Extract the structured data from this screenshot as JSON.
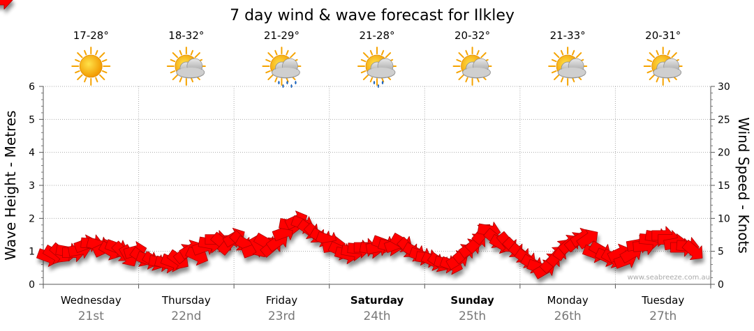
{
  "title": "7 day wind & wave forecast for Ilkley",
  "watermark": "www.seabreeze.com.au",
  "colors": {
    "arrow": "#ff0000",
    "arrow_stroke": "#b00000",
    "grid": "#aaaaaa",
    "sun": "#f5a300",
    "cloud": "#b5b5b5",
    "rain": "#1e6fd0"
  },
  "days": [
    {
      "name": "Wednesday",
      "num": "21st",
      "temp": "17-28°",
      "icon": "sun-icon",
      "bold": false
    },
    {
      "name": "Thursday",
      "num": "22nd",
      "temp": "18-32°",
      "icon": "sun-cloud-icon",
      "bold": false
    },
    {
      "name": "Friday",
      "num": "23rd",
      "temp": "21-29°",
      "icon": "sun-cloud-rain-icon",
      "bold": false
    },
    {
      "name": "Saturday",
      "num": "24th",
      "temp": "21-28°",
      "icon": "sun-cloud-showers-icon",
      "bold": true
    },
    {
      "name": "Sunday",
      "num": "25th",
      "temp": "20-32°",
      "icon": "sun-cloud-icon",
      "bold": true
    },
    {
      "name": "Monday",
      "num": "26th",
      "temp": "21-33°",
      "icon": "sun-cloud-icon",
      "bold": false
    },
    {
      "name": "Tuesday",
      "num": "27th",
      "temp": "20-31°",
      "icon": "sun-cloud-icon",
      "bold": false
    }
  ],
  "chart_data": {
    "type": "line",
    "ylabel_left": "Wave Height - Metres",
    "ylabel_right": "Wind Speed - Knots",
    "ylim_left": [
      0,
      6
    ],
    "ylim_right": [
      0,
      30
    ],
    "yticks_left": [
      "0",
      "1",
      "2",
      "3",
      "4",
      "5",
      "6"
    ],
    "yticks_right": [
      "0",
      "5",
      "10",
      "15",
      "20",
      "25",
      "30"
    ],
    "grid": true,
    "series": [
      {
        "kind": "wind_arrows",
        "values": [
          4.2,
          4.6,
          4.8,
          5.0,
          4.8,
          5.2,
          6.0,
          6.2,
          6.0,
          5.4,
          5.2,
          5.6,
          5.0,
          4.4,
          5.0,
          4.2,
          3.8,
          3.6,
          3.4,
          3.2,
          3.4,
          3.8,
          4.6,
          5.2,
          4.4,
          5.6,
          6.2,
          6.8,
          6.4,
          6.0,
          7.0,
          6.6,
          6.0,
          5.2,
          5.8,
          6.4,
          5.6,
          6.4,
          7.8,
          9.0,
          9.6,
          9.2,
          8.4,
          7.8,
          7.2,
          6.8,
          5.8,
          5.2,
          4.6,
          5.0,
          5.4,
          5.6,
          5.4,
          5.6,
          6.2,
          5.8,
          6.0,
          6.4,
          5.6,
          5.0,
          4.4,
          4.0,
          3.6,
          3.4,
          3.2,
          3.0,
          3.6,
          4.6,
          5.4,
          6.2,
          7.6,
          8.2,
          7.0,
          6.2,
          6.4,
          5.6,
          4.8,
          4.0,
          3.2,
          2.6,
          2.2,
          3.2,
          4.2,
          5.2,
          6.0,
          6.4,
          7.0,
          6.8,
          4.8,
          5.2,
          4.2,
          4.0,
          4.6,
          3.6,
          4.6,
          6.0,
          5.8,
          6.8,
          7.2,
          7.4,
          6.8,
          6.2,
          5.6,
          5.8,
          5.2,
          5.0,
          3.2
        ],
        "directions": [
          20,
          30,
          40,
          10,
          0,
          -10,
          -20,
          5,
          15,
          -25,
          30,
          20,
          45,
          60,
          -15,
          35,
          20,
          30,
          10,
          15,
          20,
          35,
          -40,
          -30,
          25,
          -20,
          10,
          0,
          40,
          -50,
          -30,
          45,
          30,
          -20,
          60,
          30,
          -40,
          -35,
          -20,
          10,
          -25,
          20,
          35,
          45,
          30,
          20,
          -10,
          25,
          15,
          10,
          5,
          0,
          10,
          -10,
          20,
          15,
          -20,
          30,
          45,
          30,
          20,
          10,
          25,
          35,
          15,
          20,
          -30,
          -40,
          -35,
          -45,
          -50,
          10,
          40,
          30,
          50,
          45,
          40,
          35,
          30,
          20,
          -30,
          -45,
          -50,
          -55,
          -40,
          -40,
          -30,
          -35,
          20,
          30,
          25,
          30,
          -25,
          -20,
          -30,
          -10,
          -5,
          5,
          10,
          0,
          0,
          -10,
          0,
          5,
          40
        ]
      }
    ]
  }
}
